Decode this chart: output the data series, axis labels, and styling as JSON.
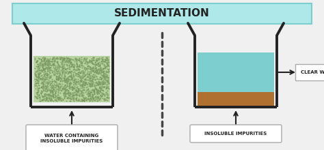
{
  "title": "SEDIMENTATION",
  "title_bg": "#aee8e8",
  "title_border": "#7ecece",
  "bg_color": "#f0f0f0",
  "label1": "WATER CONTAINING\nINSOLUBLE IMPURITIES",
  "label2": "INSOLUBLE IMPURITIES",
  "label3": "CLEAR WATER",
  "murky_color": "#b8d4a0",
  "murky_dot_color": "#7a9960",
  "sediment_color": "#b07030",
  "clear_water_color": "#7dcece",
  "beaker_edge": "#222222",
  "dot_line_color": "#444444",
  "text_color": "#222222",
  "label_edge": "#aaaaaa",
  "label_bg": "#ffffff"
}
